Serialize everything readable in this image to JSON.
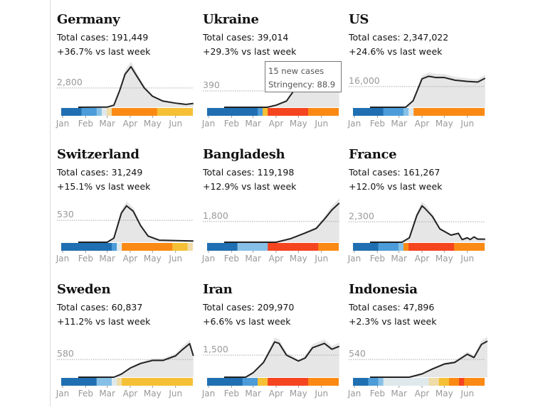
{
  "chart_data": [
    {
      "type": "line",
      "title": "Germany",
      "total": "Total cases: 191,449",
      "change": "+36.7% vs last week",
      "ref": 2800,
      "ref_label": "2,800",
      "ymax": 6200,
      "points": [
        [
          "Jan 22",
          0
        ],
        [
          "Mar 1",
          20
        ],
        [
          "Mar 10",
          300
        ],
        [
          "Mar 18",
          2500
        ],
        [
          "Mar 25",
          4800
        ],
        [
          "Apr 2",
          5900
        ],
        [
          "Apr 10",
          4500
        ],
        [
          "Apr 20",
          2800
        ],
        [
          "May 1",
          1600
        ],
        [
          "May 15",
          900
        ],
        [
          "Jun 1",
          600
        ],
        [
          "Jun 15",
          420
        ],
        [
          "Jun 25",
          550
        ]
      ],
      "stringency_levels": [
        0,
        0,
        0,
        0,
        1,
        1,
        1,
        2,
        3,
        4,
        6,
        6,
        6,
        6,
        6,
        6,
        6,
        6,
        6,
        5,
        5,
        5,
        5,
        5,
        5,
        5
      ]
    },
    {
      "type": "line",
      "title": "Ukraine",
      "total": "Total cases: 39,014",
      "change": "+29.3% vs last week",
      "ref": 390,
      "ref_label": "390",
      "ymax": 1020,
      "points": [
        [
          "Jan 22",
          0
        ],
        [
          "Mar 20",
          0
        ],
        [
          "Apr 1",
          50
        ],
        [
          "Apr 15",
          150
        ],
        [
          "Apr 25",
          400
        ],
        [
          "May 1",
          450
        ],
        [
          "May 10",
          440
        ],
        [
          "May 20",
          480
        ],
        [
          "Jun 1",
          400
        ],
        [
          "Jun 10",
          500
        ],
        [
          "Jun 15",
          450
        ],
        [
          "Jun 25",
          680
        ]
      ],
      "stringency_levels": [
        0,
        0,
        0,
        0,
        0,
        0,
        0,
        0,
        0,
        0,
        1,
        5,
        7,
        7,
        7,
        7,
        7,
        7,
        7,
        7,
        6,
        6,
        6,
        6,
        6,
        6
      ]
    },
    {
      "type": "line",
      "title": "US",
      "total": "Total cases: 2,347,022",
      "change": "+24.6% vs last week",
      "ref": 16000,
      "ref_label": "16,000",
      "ymax": 33000,
      "points": [
        [
          "Jan 22",
          0
        ],
        [
          "Mar 10",
          0
        ],
        [
          "Mar 20",
          5000
        ],
        [
          "Apr 1",
          22000
        ],
        [
          "Apr 10",
          24000
        ],
        [
          "Apr 20",
          23000
        ],
        [
          "May 1",
          23000
        ],
        [
          "May 15",
          21000
        ],
        [
          "Jun 1",
          20000
        ],
        [
          "Jun 15",
          19500
        ],
        [
          "Jun 25",
          22500
        ]
      ],
      "stringency_levels": [
        0,
        0,
        0,
        0,
        0,
        0,
        1,
        1,
        1,
        1,
        2,
        3,
        6,
        6,
        6,
        6,
        6,
        6,
        6,
        6,
        6,
        6,
        6,
        6,
        6,
        6
      ]
    },
    {
      "type": "line",
      "title": "Switzerland",
      "total": "Total cases: 31,249",
      "change": "+15.1% vs last week",
      "ref": 530,
      "ref_label": "530",
      "ymax": 1030,
      "points": [
        [
          "Jan 22",
          0
        ],
        [
          "Mar 1",
          0
        ],
        [
          "Mar 10",
          100
        ],
        [
          "Mar 20",
          700
        ],
        [
          "Mar 27",
          880
        ],
        [
          "Apr 5",
          750
        ],
        [
          "Apr 15",
          400
        ],
        [
          "Apr 25",
          150
        ],
        [
          "May 10",
          50
        ],
        [
          "Jun 25",
          30
        ]
      ],
      "stringency_levels": [
        0,
        0,
        0,
        0,
        0,
        0,
        0,
        0,
        0,
        0,
        1,
        3,
        6,
        6,
        6,
        6,
        6,
        6,
        6,
        6,
        6,
        6,
        5,
        5,
        5,
        4
      ]
    },
    {
      "type": "line",
      "title": "Bangladesh",
      "total": "Total cases: 119,198",
      "change": "+12.9% vs last week",
      "ref": 1800,
      "ref_label": "1,800",
      "ymax": 3700,
      "points": [
        [
          "Jan 22",
          0
        ],
        [
          "Apr 1",
          0
        ],
        [
          "Apr 20",
          300
        ],
        [
          "May 10",
          800
        ],
        [
          "May 25",
          1200
        ],
        [
          "Jun 5",
          2000
        ],
        [
          "Jun 15",
          2800
        ],
        [
          "Jun 25",
          3400
        ]
      ],
      "stringency_levels": [
        0,
        0,
        0,
        0,
        0,
        0,
        2,
        2,
        2,
        2,
        2,
        2,
        7,
        7,
        7,
        7,
        7,
        7,
        7,
        7,
        7,
        7,
        6,
        6,
        6,
        6
      ]
    },
    {
      "type": "line",
      "title": "France",
      "total": "Total cases: 161,267",
      "change": "+12.0% vs last week",
      "ref": 2300,
      "ref_label": "2,300",
      "ymax": 4800,
      "points": [
        [
          "Jan 22",
          0
        ],
        [
          "Mar 5",
          0
        ],
        [
          "Mar 15",
          500
        ],
        [
          "Mar 25",
          3000
        ],
        [
          "Apr 1",
          4100
        ],
        [
          "Apr 5",
          3800
        ],
        [
          "Apr 15",
          2900
        ],
        [
          "Apr 25",
          1500
        ],
        [
          "May 10",
          800
        ],
        [
          "May 20",
          1000
        ],
        [
          "May 25",
          300
        ],
        [
          "Jun 1",
          500
        ],
        [
          "Jun 5",
          300
        ],
        [
          "Jun 10",
          600
        ],
        [
          "Jun 15",
          350
        ],
        [
          "Jun 25",
          350
        ]
      ],
      "stringency_levels": [
        0,
        0,
        0,
        0,
        0,
        1,
        1,
        1,
        1,
        2,
        6,
        7,
        7,
        7,
        7,
        7,
        7,
        7,
        7,
        7,
        6,
        6,
        6,
        6,
        6,
        6
      ]
    },
    {
      "type": "line",
      "title": "Sweden",
      "total": "Total cases: 60,837",
      "change": "+11.2% vs last week",
      "ref": 580,
      "ref_label": "580",
      "ymax": 1400,
      "points": [
        [
          "Jan 22",
          0
        ],
        [
          "Mar 10",
          0
        ],
        [
          "Mar 20",
          100
        ],
        [
          "Apr 1",
          300
        ],
        [
          "Apr 15",
          450
        ],
        [
          "May 1",
          550
        ],
        [
          "May 15",
          550
        ],
        [
          "Jun 1",
          700
        ],
        [
          "Jun 10",
          900
        ],
        [
          "Jun 20",
          1100
        ],
        [
          "Jun 25",
          700
        ]
      ],
      "stringency_levels": [
        0,
        0,
        0,
        0,
        0,
        0,
        0,
        2,
        2,
        2,
        3,
        4,
        5,
        5,
        5,
        5,
        5,
        5,
        5,
        5,
        5,
        5,
        5,
        5,
        5,
        5
      ]
    },
    {
      "type": "line",
      "title": "Iran",
      "total": "Total cases: 209,970",
      "change": "+6.6% vs last week",
      "ref": 1500,
      "ref_label": "1,500",
      "ymax": 2900,
      "points": [
        [
          "Jan 22",
          0
        ],
        [
          "Feb 20",
          0
        ],
        [
          "Mar 1",
          300
        ],
        [
          "Mar 15",
          1000
        ],
        [
          "Mar 30",
          2400
        ],
        [
          "Apr 5",
          2300
        ],
        [
          "Apr 15",
          1500
        ],
        [
          "May 1",
          1100
        ],
        [
          "May 10",
          1300
        ],
        [
          "May 20",
          2000
        ],
        [
          "Jun 5",
          2300
        ],
        [
          "Jun 15",
          1900
        ],
        [
          "Jun 25",
          2100
        ]
      ],
      "stringency_levels": [
        0,
        0,
        0,
        0,
        0,
        0,
        0,
        1,
        1,
        1,
        5,
        5,
        7,
        7,
        7,
        7,
        7,
        7,
        7,
        7,
        6,
        6,
        6,
        6,
        6,
        6
      ]
    },
    {
      "type": "line",
      "title": "Indonesia",
      "total": "Total cases: 47,896",
      "change": "+2.3% vs last week",
      "ref": 540,
      "ref_label": "540",
      "ymax": 1300,
      "points": [
        [
          "Jan 22",
          0
        ],
        [
          "Mar 15",
          0
        ],
        [
          "Apr 1",
          100
        ],
        [
          "Apr 15",
          250
        ],
        [
          "May 1",
          400
        ],
        [
          "May 15",
          450
        ],
        [
          "Jun 1",
          700
        ],
        [
          "Jun 10",
          600
        ],
        [
          "Jun 20",
          1000
        ],
        [
          "Jun 28",
          1100
        ]
      ],
      "stringency_levels": [
        0,
        0,
        0,
        1,
        1,
        2,
        3,
        3,
        3,
        3,
        3,
        3,
        3,
        3,
        3,
        4,
        4,
        5,
        5,
        6,
        6,
        7,
        6,
        6,
        6,
        6
      ]
    }
  ],
  "months": [
    "Jan",
    "Feb",
    "Mar",
    "Apr",
    "May",
    "Jun"
  ],
  "stringency_colors": [
    "#1f6fb2",
    "#4b9cd8",
    "#86c0e6",
    "#dfe9ec",
    "#efdca6",
    "#f5c035",
    "#fb8a14",
    "#f54420"
  ],
  "tooltip": {
    "cases": "15 new cases",
    "stringency": "Stringency: 88.9"
  }
}
